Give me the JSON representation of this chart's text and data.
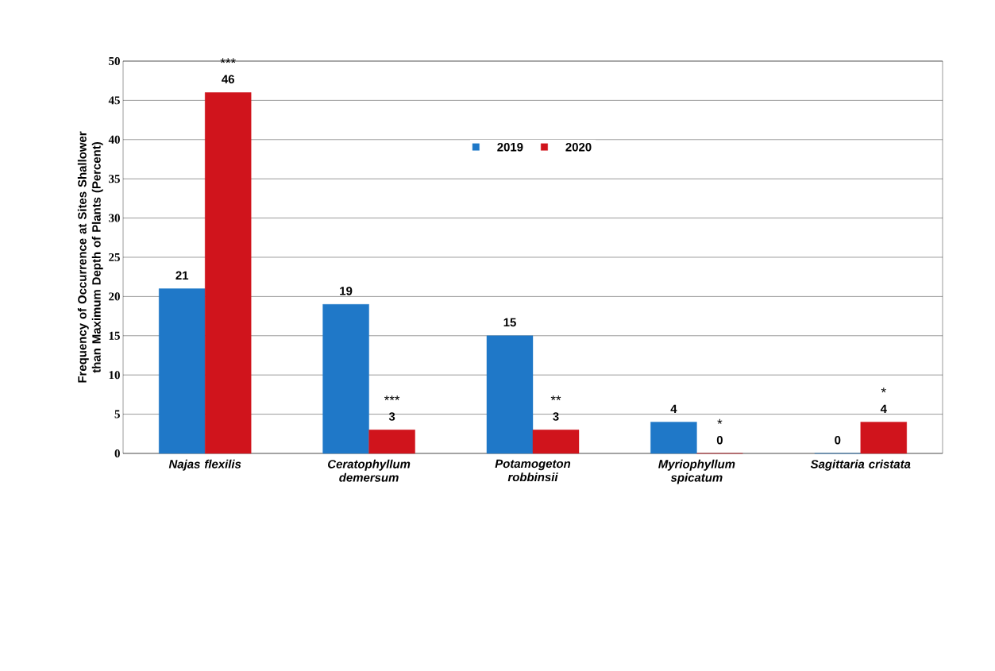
{
  "chart_data": {
    "type": "bar",
    "ylabel": "Frequency of Occurrence at Sites Shallower than Maximum Depth of Plants (Percent)",
    "categories": [
      "Najas flexilis",
      "Ceratophyllum demersum",
      "Potamogeton robbinsii",
      "Myriophyllum spicatum",
      "Sagittaria cristata"
    ],
    "series": [
      {
        "name": "2019",
        "color": "#1f78c8",
        "values": [
          21,
          19,
          15,
          4,
          0
        ]
      },
      {
        "name": "2020",
        "color": "#d0141c",
        "values": [
          46,
          3,
          3,
          0,
          4
        ]
      }
    ],
    "ylim": [
      0,
      50
    ],
    "yticks": [
      0,
      5,
      10,
      15,
      20,
      25,
      30,
      35,
      40,
      45,
      50
    ],
    "grid": "y",
    "legend": "top",
    "data_labels": true,
    "annotations": [
      "***",
      "***",
      "**",
      "*",
      "*"
    ]
  }
}
